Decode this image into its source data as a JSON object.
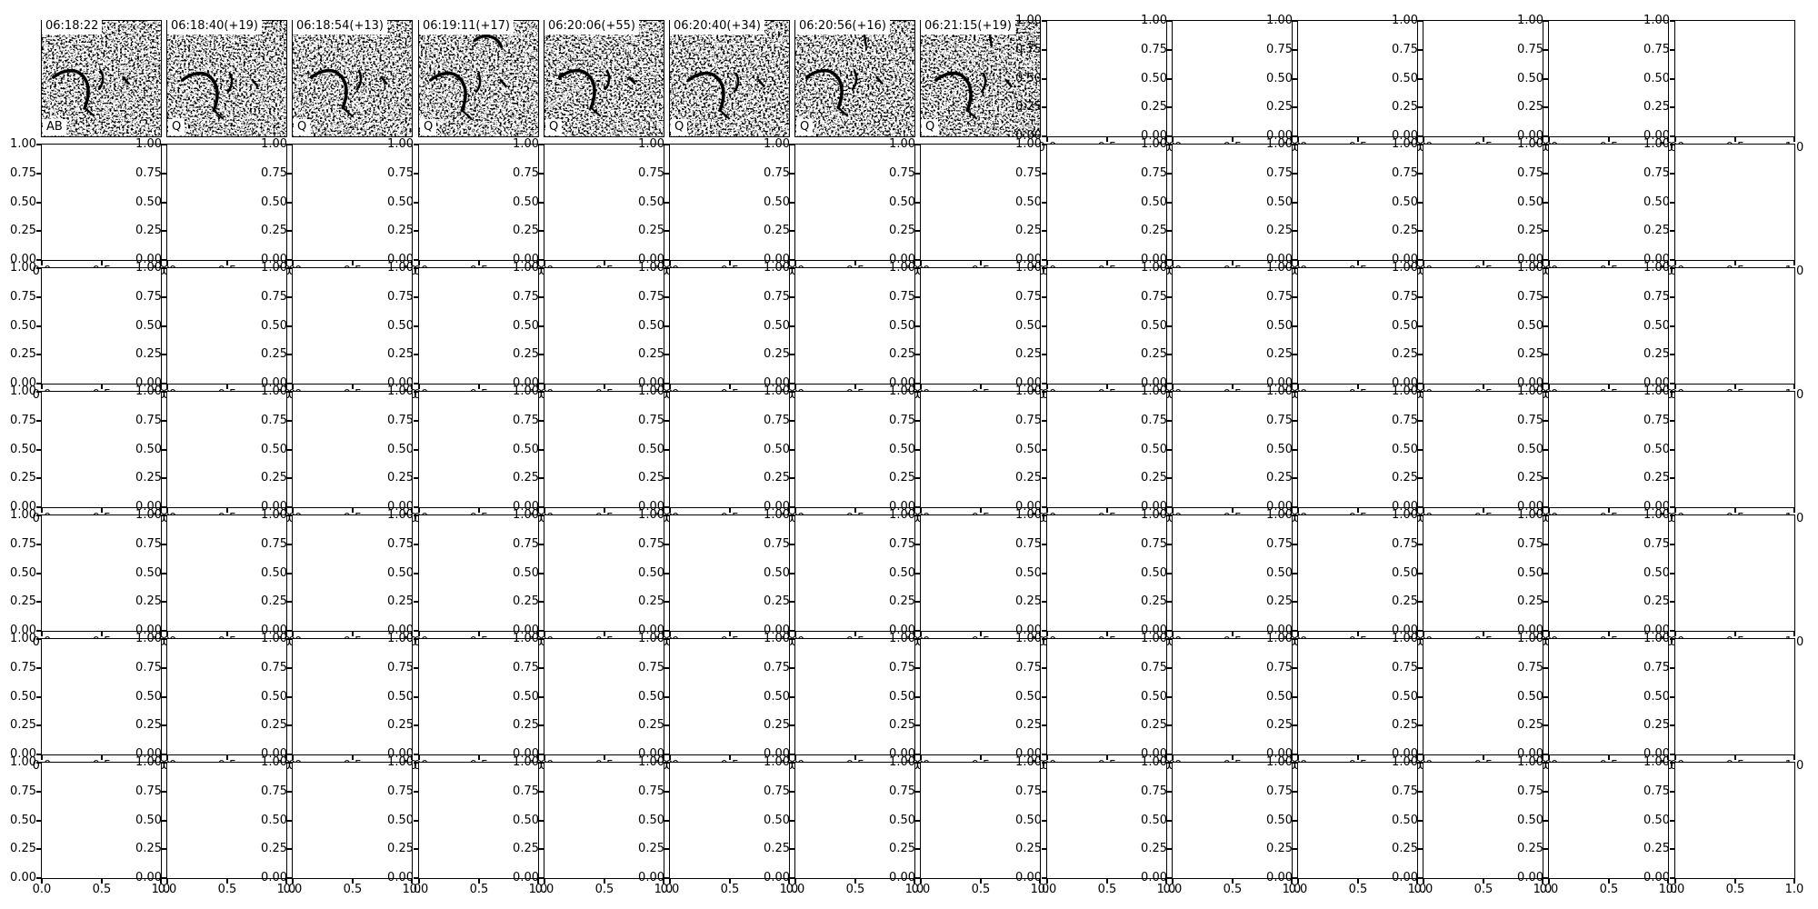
{
  "figure": {
    "background": "#ffffff",
    "y_tick_labels": [
      "1.00",
      "0.75",
      "0.50",
      "0.25",
      "0.00"
    ],
    "x_tick_labels": [
      "0.0",
      "0.5",
      "1.0"
    ]
  },
  "chart_data": {
    "type": "heatmap",
    "title": "",
    "description": "Matplotlib-style figure: 7x14 grid of subplots. The first 8 cells of the top row are grayscale noisy spectrogram-like image crops, each with a timestamp title in a white box (top-left) and a tag label in a white box (bottom-left). All remaining 90 subplots are empty axes with default [0,1] limits; their tick labels overlap neighboring subplots, leaving clipped '0' slivers at figure edges and mashed 0.00/1.00 labels at row boundaries.",
    "grid": {
      "rows": 7,
      "cols": 14
    },
    "image_panels": [
      {
        "title": "06:18:22",
        "tag": "AB"
      },
      {
        "title": "06:18:40(+19)",
        "tag": "Q"
      },
      {
        "title": "06:18:54(+13)",
        "tag": "Q"
      },
      {
        "title": "06:19:11(+17)",
        "tag": "Q"
      },
      {
        "title": "06:20:06(+55)",
        "tag": "Q"
      },
      {
        "title": "06:20:40(+34)",
        "tag": "Q"
      },
      {
        "title": "06:20:56(+16)",
        "tag": "Q"
      },
      {
        "title": "06:21:15(+19)",
        "tag": "Q"
      }
    ],
    "empty_axes": {
      "xlim": [
        0,
        1
      ],
      "ylim": [
        0,
        1
      ],
      "x_ticks": [
        0.0,
        0.5,
        1.0
      ],
      "y_ticks": [
        0.0,
        0.25,
        0.5,
        0.75,
        1.0
      ],
      "grid": false
    },
    "axis_tick_color": "#000000",
    "spine_color": "#000000"
  }
}
